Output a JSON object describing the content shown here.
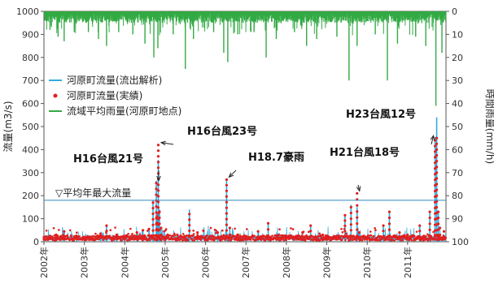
{
  "chart_data": {
    "type": "line",
    "ylabel_left": "流量(m3/s)",
    "ylabel_right": "時間雨量(mm/h)",
    "ylim_left": [
      0,
      1000
    ],
    "ylim_right": [
      100,
      0
    ],
    "y_ticks_left": [
      "0",
      "100",
      "200",
      "300",
      "400",
      "500",
      "600",
      "700",
      "800",
      "900",
      "1000"
    ],
    "y_ticks_right": [
      "0",
      "10",
      "20",
      "30",
      "40",
      "50",
      "60",
      "70",
      "80",
      "90",
      "100"
    ],
    "x_ticks": [
      "2002年",
      "2003年",
      "2004年",
      "2005年",
      "2006年",
      "2007年",
      "2008年",
      "2009年",
      "2010年",
      "2011年"
    ],
    "x_range": [
      2002.0,
      2011.95
    ],
    "grid": false,
    "legend_position": "top-left",
    "series": [
      {
        "name": "河原町流量(流出解析)",
        "color": "#33aadd",
        "style": "line",
        "axis": "left",
        "points": [
          [
            2002.0,
            15
          ],
          [
            2002.3,
            30
          ],
          [
            2002.5,
            50
          ],
          [
            2002.8,
            25
          ],
          [
            2003.0,
            20
          ],
          [
            2003.4,
            40
          ],
          [
            2003.55,
            75
          ],
          [
            2003.8,
            30
          ],
          [
            2004.0,
            15
          ],
          [
            2004.3,
            40
          ],
          [
            2004.45,
            50
          ],
          [
            2004.6,
            60
          ],
          [
            2004.7,
            180
          ],
          [
            2004.78,
            265
          ],
          [
            2004.8,
            120
          ],
          [
            2004.83,
            355
          ],
          [
            2004.86,
            140
          ],
          [
            2004.9,
            60
          ],
          [
            2005.0,
            20
          ],
          [
            2005.3,
            30
          ],
          [
            2005.6,
            140
          ],
          [
            2005.8,
            40
          ],
          [
            2006.0,
            20
          ],
          [
            2006.3,
            45
          ],
          [
            2006.52,
            275
          ],
          [
            2006.6,
            60
          ],
          [
            2006.8,
            30
          ],
          [
            2007.0,
            20
          ],
          [
            2007.3,
            50
          ],
          [
            2007.55,
            85
          ],
          [
            2007.8,
            35
          ],
          [
            2008.0,
            15
          ],
          [
            2008.4,
            40
          ],
          [
            2008.6,
            75
          ],
          [
            2008.9,
            30
          ],
          [
            2009.0,
            20
          ],
          [
            2009.45,
            120
          ],
          [
            2009.6,
            160
          ],
          [
            2009.75,
            150
          ],
          [
            2009.8,
            40
          ],
          [
            2010.0,
            20
          ],
          [
            2010.4,
            70
          ],
          [
            2010.55,
            130
          ],
          [
            2010.8,
            40
          ],
          [
            2011.0,
            30
          ],
          [
            2011.3,
            70
          ],
          [
            2011.55,
            130
          ],
          [
            2011.68,
            455
          ],
          [
            2011.72,
            540
          ],
          [
            2011.76,
            130
          ],
          [
            2011.8,
            30
          ],
          [
            2011.9,
            20
          ]
        ]
      },
      {
        "name": "河原町流量(実績)",
        "color": "#e02020",
        "style": "dots",
        "axis": "left",
        "points": [
          [
            2002.0,
            20
          ],
          [
            2002.3,
            30
          ],
          [
            2002.5,
            45
          ],
          [
            2002.8,
            25
          ],
          [
            2003.0,
            20
          ],
          [
            2003.4,
            35
          ],
          [
            2003.55,
            70
          ],
          [
            2003.8,
            30
          ],
          [
            2004.0,
            20
          ],
          [
            2004.3,
            40
          ],
          [
            2004.45,
            50
          ],
          [
            2004.6,
            55
          ],
          [
            2004.7,
            170
          ],
          [
            2004.78,
            255
          ],
          [
            2004.8,
            110
          ],
          [
            2004.83,
            420
          ],
          [
            2004.86,
            130
          ],
          [
            2004.9,
            60
          ],
          [
            2005.0,
            20
          ],
          [
            2005.3,
            30
          ],
          [
            2005.6,
            120
          ],
          [
            2005.8,
            40
          ],
          [
            2006.0,
            20
          ],
          [
            2006.3,
            40
          ],
          [
            2006.52,
            270
          ],
          [
            2006.6,
            60
          ],
          [
            2006.8,
            30
          ],
          [
            2007.0,
            20
          ],
          [
            2007.3,
            45
          ],
          [
            2007.55,
            80
          ],
          [
            2007.8,
            30
          ],
          [
            2008.0,
            20
          ],
          [
            2008.4,
            40
          ],
          [
            2008.6,
            70
          ],
          [
            2008.9,
            30
          ],
          [
            2009.0,
            20
          ],
          [
            2009.45,
            115
          ],
          [
            2009.6,
            150
          ],
          [
            2009.75,
            210
          ],
          [
            2009.8,
            40
          ],
          [
            2010.0,
            20
          ],
          [
            2010.4,
            70
          ],
          [
            2010.55,
            130
          ],
          [
            2010.8,
            40
          ],
          [
            2011.0,
            30
          ],
          [
            2011.3,
            70
          ],
          [
            2011.55,
            130
          ],
          [
            2011.68,
            440
          ],
          [
            2011.72,
            450
          ],
          [
            2011.76,
            130
          ],
          [
            2011.8,
            60
          ],
          [
            2011.9,
            45
          ]
        ]
      },
      {
        "name": "流域平均雨量(河原町地点)",
        "color": "#33aa44",
        "style": "inverted-bars",
        "axis": "right",
        "points": [
          [
            2002.15,
            8
          ],
          [
            2002.35,
            11
          ],
          [
            2002.5,
            13
          ],
          [
            2002.75,
            9
          ],
          [
            2003.1,
            9
          ],
          [
            2003.35,
            12
          ],
          [
            2003.55,
            15
          ],
          [
            2003.85,
            9
          ],
          [
            2004.2,
            10
          ],
          [
            2004.5,
            14
          ],
          [
            2004.72,
            20
          ],
          [
            2004.82,
            16
          ],
          [
            2005.2,
            10
          ],
          [
            2005.5,
            25
          ],
          [
            2005.7,
            12
          ],
          [
            2006.2,
            9
          ],
          [
            2006.45,
            18
          ],
          [
            2006.55,
            22
          ],
          [
            2006.8,
            10
          ],
          [
            2007.2,
            9
          ],
          [
            2007.5,
            20
          ],
          [
            2007.75,
            12
          ],
          [
            2008.2,
            9
          ],
          [
            2008.5,
            15
          ],
          [
            2008.75,
            12
          ],
          [
            2009.25,
            11
          ],
          [
            2009.55,
            30
          ],
          [
            2009.75,
            15
          ],
          [
            2010.2,
            10
          ],
          [
            2010.5,
            30
          ],
          [
            2010.75,
            14
          ],
          [
            2011.2,
            11
          ],
          [
            2011.45,
            15
          ],
          [
            2011.7,
            41
          ],
          [
            2011.85,
            18
          ]
        ]
      }
    ],
    "reference_line": {
      "label": "▽平均年最大流量",
      "value": 180
    },
    "annotations": [
      {
        "text": "H16台風21号",
        "x": 2004.78,
        "y": 255
      },
      {
        "text": "H16台風23号",
        "x": 2004.84,
        "y": 420
      },
      {
        "text": "H18.7豪雨",
        "x": 2006.52,
        "y": 270
      },
      {
        "text": "H21台風18号",
        "x": 2009.75,
        "y": 210
      },
      {
        "text": "H23台風12号",
        "x": 2011.7,
        "y": 450
      }
    ]
  }
}
